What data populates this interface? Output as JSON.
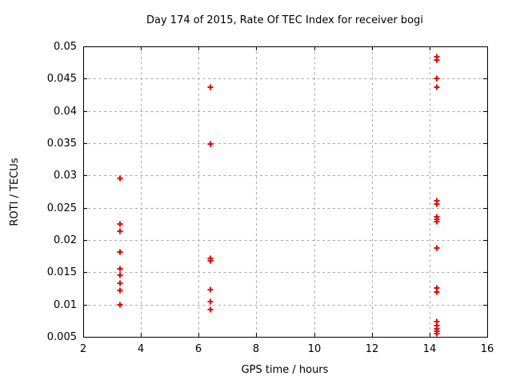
{
  "chart_data": {
    "type": "scatter",
    "title": "Day 174 of 2015, Rate Of TEC Index for receiver bogi",
    "xlabel": "GPS time / hours",
    "ylabel": "ROTI / TECUs",
    "xlim": [
      2,
      16
    ],
    "ylim": [
      0.005,
      0.05
    ],
    "x_tick_values": [
      2,
      4,
      6,
      8,
      10,
      12,
      14,
      16
    ],
    "x_tick_labels": [
      "2",
      "4",
      "6",
      "8",
      "10",
      "12",
      "14",
      "16"
    ],
    "y_tick_values": [
      0.005,
      0.01,
      0.015,
      0.02,
      0.025,
      0.03,
      0.035,
      0.04,
      0.045,
      0.05
    ],
    "y_tick_labels": [
      "0.005",
      "0.01",
      "0.015",
      "0.02",
      "0.025",
      "0.03",
      "0.035",
      "0.04",
      "0.045",
      "0.05"
    ],
    "grid": true,
    "legend_position": "none",
    "marker": "plus",
    "marker_color": "#ee0000",
    "grid_color": "#a9a9a9",
    "axis_color": "#000000",
    "background_color": "#ffffff",
    "series": [
      {
        "name": "ROTI",
        "points": [
          [
            3.28,
            0.0295
          ],
          [
            3.28,
            0.0225
          ],
          [
            3.28,
            0.0214
          ],
          [
            3.28,
            0.0181
          ],
          [
            3.28,
            0.0155
          ],
          [
            3.28,
            0.0146
          ],
          [
            3.28,
            0.0133
          ],
          [
            3.28,
            0.0122
          ],
          [
            3.28,
            0.01
          ],
          [
            6.42,
            0.0437
          ],
          [
            6.42,
            0.0349
          ],
          [
            6.42,
            0.0172
          ],
          [
            6.42,
            0.0168
          ],
          [
            6.42,
            0.0123
          ],
          [
            6.42,
            0.0104
          ],
          [
            6.42,
            0.0092
          ],
          [
            14.26,
            0.0484
          ],
          [
            14.26,
            0.0479
          ],
          [
            14.26,
            0.0451
          ],
          [
            14.26,
            0.0437
          ],
          [
            14.26,
            0.0261
          ],
          [
            14.26,
            0.0256
          ],
          [
            14.26,
            0.0236
          ],
          [
            14.26,
            0.0232
          ],
          [
            14.26,
            0.0228
          ],
          [
            14.26,
            0.0187
          ],
          [
            14.26,
            0.0126
          ],
          [
            14.26,
            0.012
          ],
          [
            14.26,
            0.0073
          ],
          [
            14.26,
            0.0067
          ],
          [
            14.26,
            0.0062
          ],
          [
            14.26,
            0.0059
          ],
          [
            14.26,
            0.0055
          ]
        ]
      }
    ]
  }
}
